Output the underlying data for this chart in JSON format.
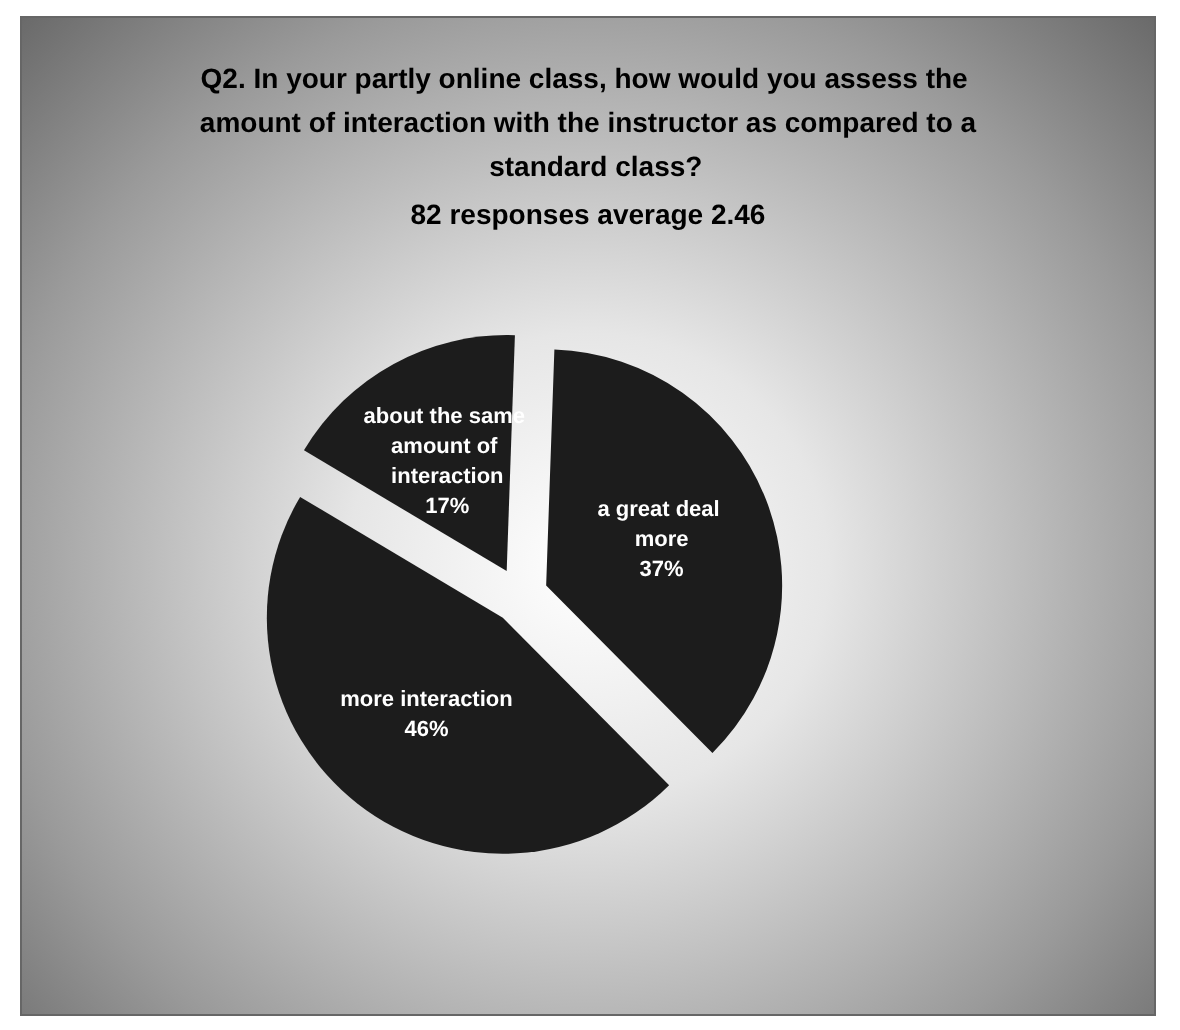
{
  "chart_data": {
    "type": "pie",
    "title": "Q2. In your partly online class, how would you assess the amount of interaction with the instructor as compared to a  standard class?",
    "subtitle": "82 responses average 2.46",
    "categories": [
      "a great deal more",
      "more interaction",
      "about the same amount of interaction"
    ],
    "values": [
      37,
      46,
      17
    ],
    "colors": [
      "#1c1c1c",
      "#1c1c1c",
      "#1c1c1c"
    ],
    "value_labels": [
      "37%",
      "46%",
      "17%"
    ],
    "legend": false
  }
}
